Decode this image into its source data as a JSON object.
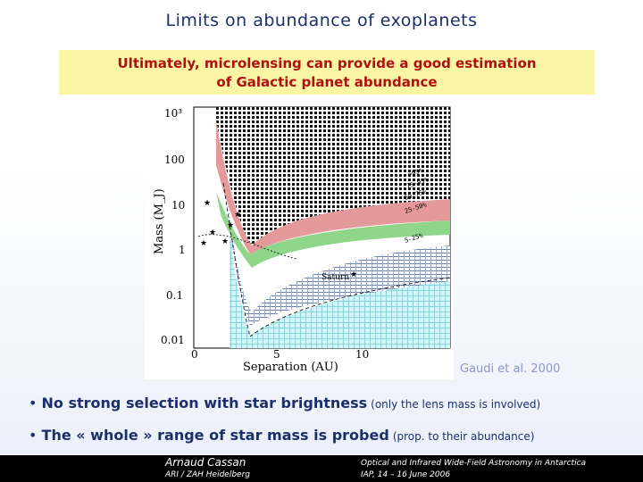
{
  "title": "Limits on abundance of exoplanets",
  "banner": {
    "line1": "Ultimately, microlensing can provide a good estimation",
    "line2": "of Galactic planet abundance"
  },
  "chart_data": {
    "type": "area",
    "xlabel": "Separation (AU)",
    "ylabel": "Mass (M_J)",
    "x_ticks": [
      "0",
      "5",
      "10"
    ],
    "y_ticks": [
      "10³",
      "100",
      "10",
      "1",
      "0.1",
      "0.01"
    ],
    "xlim": [
      0,
      15
    ],
    "ylim_log10": [
      -2,
      3
    ],
    "region_labels": [
      ">95%",
      "75-95%",
      "50-75%",
      "25-50%",
      "5-25%"
    ],
    "annotation": "Saturn"
  },
  "credit": "Gaudi et al. 2000",
  "bullets": [
    {
      "main": "No strong selection with star brightness",
      "note": "(only the lens mass is involved)"
    },
    {
      "main": "The « whole » range of star mass is probed",
      "note": "(prop. to their abundance)"
    }
  ],
  "footer": {
    "author": "Arnaud Cassan",
    "affiliation": "ARI / ZAH Heidelberg",
    "conference": "Optical and Infrared Wide-Field Astronomy in Antarctica",
    "venue": "IAP, 14 – 16 June 2006"
  },
  "colors": {
    "title": "#1c2f6b",
    "banner_bg": "#fbf5a6",
    "banner_text": "#b01010"
  }
}
